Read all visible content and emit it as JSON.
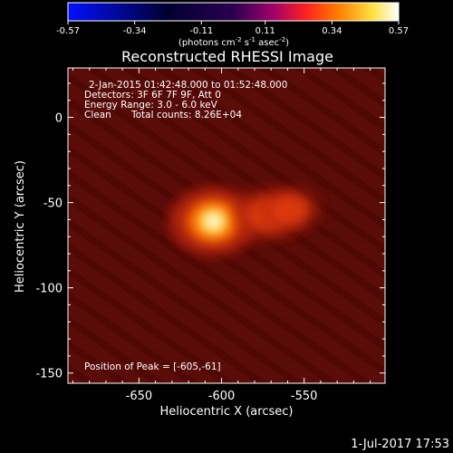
{
  "colorbar": {
    "ticks": [
      "-0.57",
      "-0.34",
      "-0.11",
      "0.11",
      "0.34",
      "0.57"
    ],
    "unit_base": "(photons cm",
    "unit_exp1": "-2",
    "unit_mid1": " s",
    "unit_exp2": "-1",
    "unit_mid2": " asec",
    "unit_exp3": "-2",
    "unit_end": ")",
    "range": [
      -0.57,
      0.57
    ]
  },
  "info": {
    "time": "2-Jan-2015 01:42:48.000 to 01:52:48.000",
    "detectors": "Detectors: 3F 6F 7F 9F, Att 0",
    "energy": "Energy Range: 3.0 - 6.0 keV",
    "clean": "Clean",
    "counts": "Total counts: 8.26E+04",
    "peak": "Position of Peak = [-605,-61]"
  },
  "footer": {
    "date": "1-Jul-2017 17:53"
  },
  "chart_data": {
    "type": "heatmap",
    "title": "Reconstructed RHESSI Image",
    "xlabel": "Heliocentric X (arcsec)",
    "ylabel": "Heliocentric Y (arcsec)",
    "xlim": [
      -693,
      -501
    ],
    "ylim": [
      -156,
      29
    ],
    "x_ticks": [
      -650,
      -600,
      -550
    ],
    "y_ticks": [
      0,
      -50,
      -100,
      -150
    ],
    "x_tick_labels": [
      "-650",
      "-600",
      "-550"
    ],
    "y_tick_labels": [
      "0",
      "-50",
      "-100",
      "-150"
    ],
    "sources": [
      {
        "x": -605,
        "y": -61,
        "peak": 0.57
      },
      {
        "x": -572,
        "y": -57,
        "peak": 0.25
      },
      {
        "x": -558,
        "y": -54,
        "peak": 0.2
      }
    ],
    "colormap": [
      "#0000ff",
      "#000000",
      "#6a00a0",
      "#c01030",
      "#ff5000",
      "#ffa000",
      "#ffff60",
      "#ffffff"
    ]
  }
}
